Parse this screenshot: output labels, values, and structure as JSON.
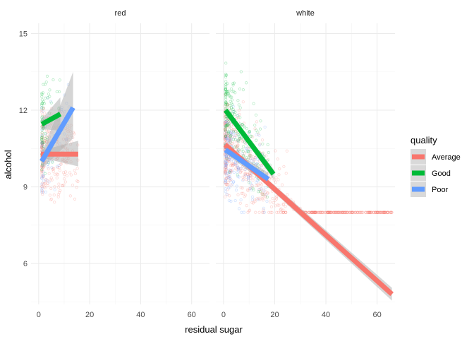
{
  "chart_data": {
    "type": "scatter",
    "xlabel": "residual sugar",
    "ylabel": "alcohol",
    "xlim": [
      -3,
      67
    ],
    "ylim": [
      4.4,
      15.4
    ],
    "x_ticks": [
      0,
      20,
      40,
      60
    ],
    "y_ticks": [
      6,
      9,
      12,
      15
    ],
    "grid": true,
    "legend": {
      "title": "quality",
      "position": "right",
      "entries": [
        "Average",
        "Good",
        "Poor"
      ]
    },
    "colors": {
      "Average": "#F8766D",
      "Good": "#00BA38",
      "Poor": "#619CFF",
      "ribbon": "#b3b3b3"
    },
    "facets": [
      {
        "label": "red",
        "scatter_extent": {
          "Average": {
            "x": [
              1.2,
              15.5
            ],
            "y": [
              8.4,
              14.9
            ]
          },
          "Good": {
            "x": [
              1.2,
              8.5
            ],
            "y": [
              9.2,
              14.0
            ]
          },
          "Poor": {
            "x": [
              1.2,
              12.0
            ],
            "y": [
              8.8,
              13.0
            ]
          }
        },
        "fits": [
          {
            "series": "Average",
            "x": [
              0.9,
              15.5
            ],
            "y": [
              10.28,
              10.28
            ],
            "ci": [
              [
                10.15,
                10.42
              ],
              [
                9.8,
                10.8
              ]
            ]
          },
          {
            "series": "Good",
            "x": [
              1.2,
              8.5
            ],
            "y": [
              11.45,
              11.85
            ],
            "ci": [
              [
                11.25,
                11.65
              ],
              [
                11.2,
                12.5
              ]
            ]
          },
          {
            "series": "Poor",
            "x": [
              1.2,
              13.5
            ],
            "y": [
              10.0,
              12.1
            ],
            "ci": [
              [
                9.7,
                10.3
              ],
              [
                10.9,
                13.5
              ]
            ]
          }
        ]
      },
      {
        "label": "white",
        "scatter_extent": {
          "Average": {
            "x": [
              0.6,
              65.8
            ],
            "y": [
              8.0,
              14.0
            ]
          },
          "Good": {
            "x": [
              0.8,
              18.5
            ],
            "y": [
              8.6,
              14.2
            ]
          },
          "Poor": {
            "x": [
              0.8,
              17.0
            ],
            "y": [
              8.0,
              13.5
            ]
          }
        },
        "fits": [
          {
            "series": "Average",
            "x": [
              0.6,
              65.8
            ],
            "y": [
              10.65,
              4.8
            ],
            "ci": [
              [
                10.55,
                10.75
              ],
              [
                4.55,
                5.05
              ]
            ]
          },
          {
            "series": "Good",
            "x": [
              0.8,
              19.5
            ],
            "y": [
              12.0,
              9.5
            ],
            "ci": [
              [
                11.9,
                12.1
              ],
              [
                9.3,
                9.7
              ]
            ]
          },
          {
            "series": "Poor",
            "x": [
              0.8,
              17.5
            ],
            "y": [
              10.45,
              9.3
            ],
            "ci": [
              [
                10.3,
                10.6
              ],
              [
                9.05,
                9.55
              ]
            ]
          }
        ]
      }
    ]
  }
}
